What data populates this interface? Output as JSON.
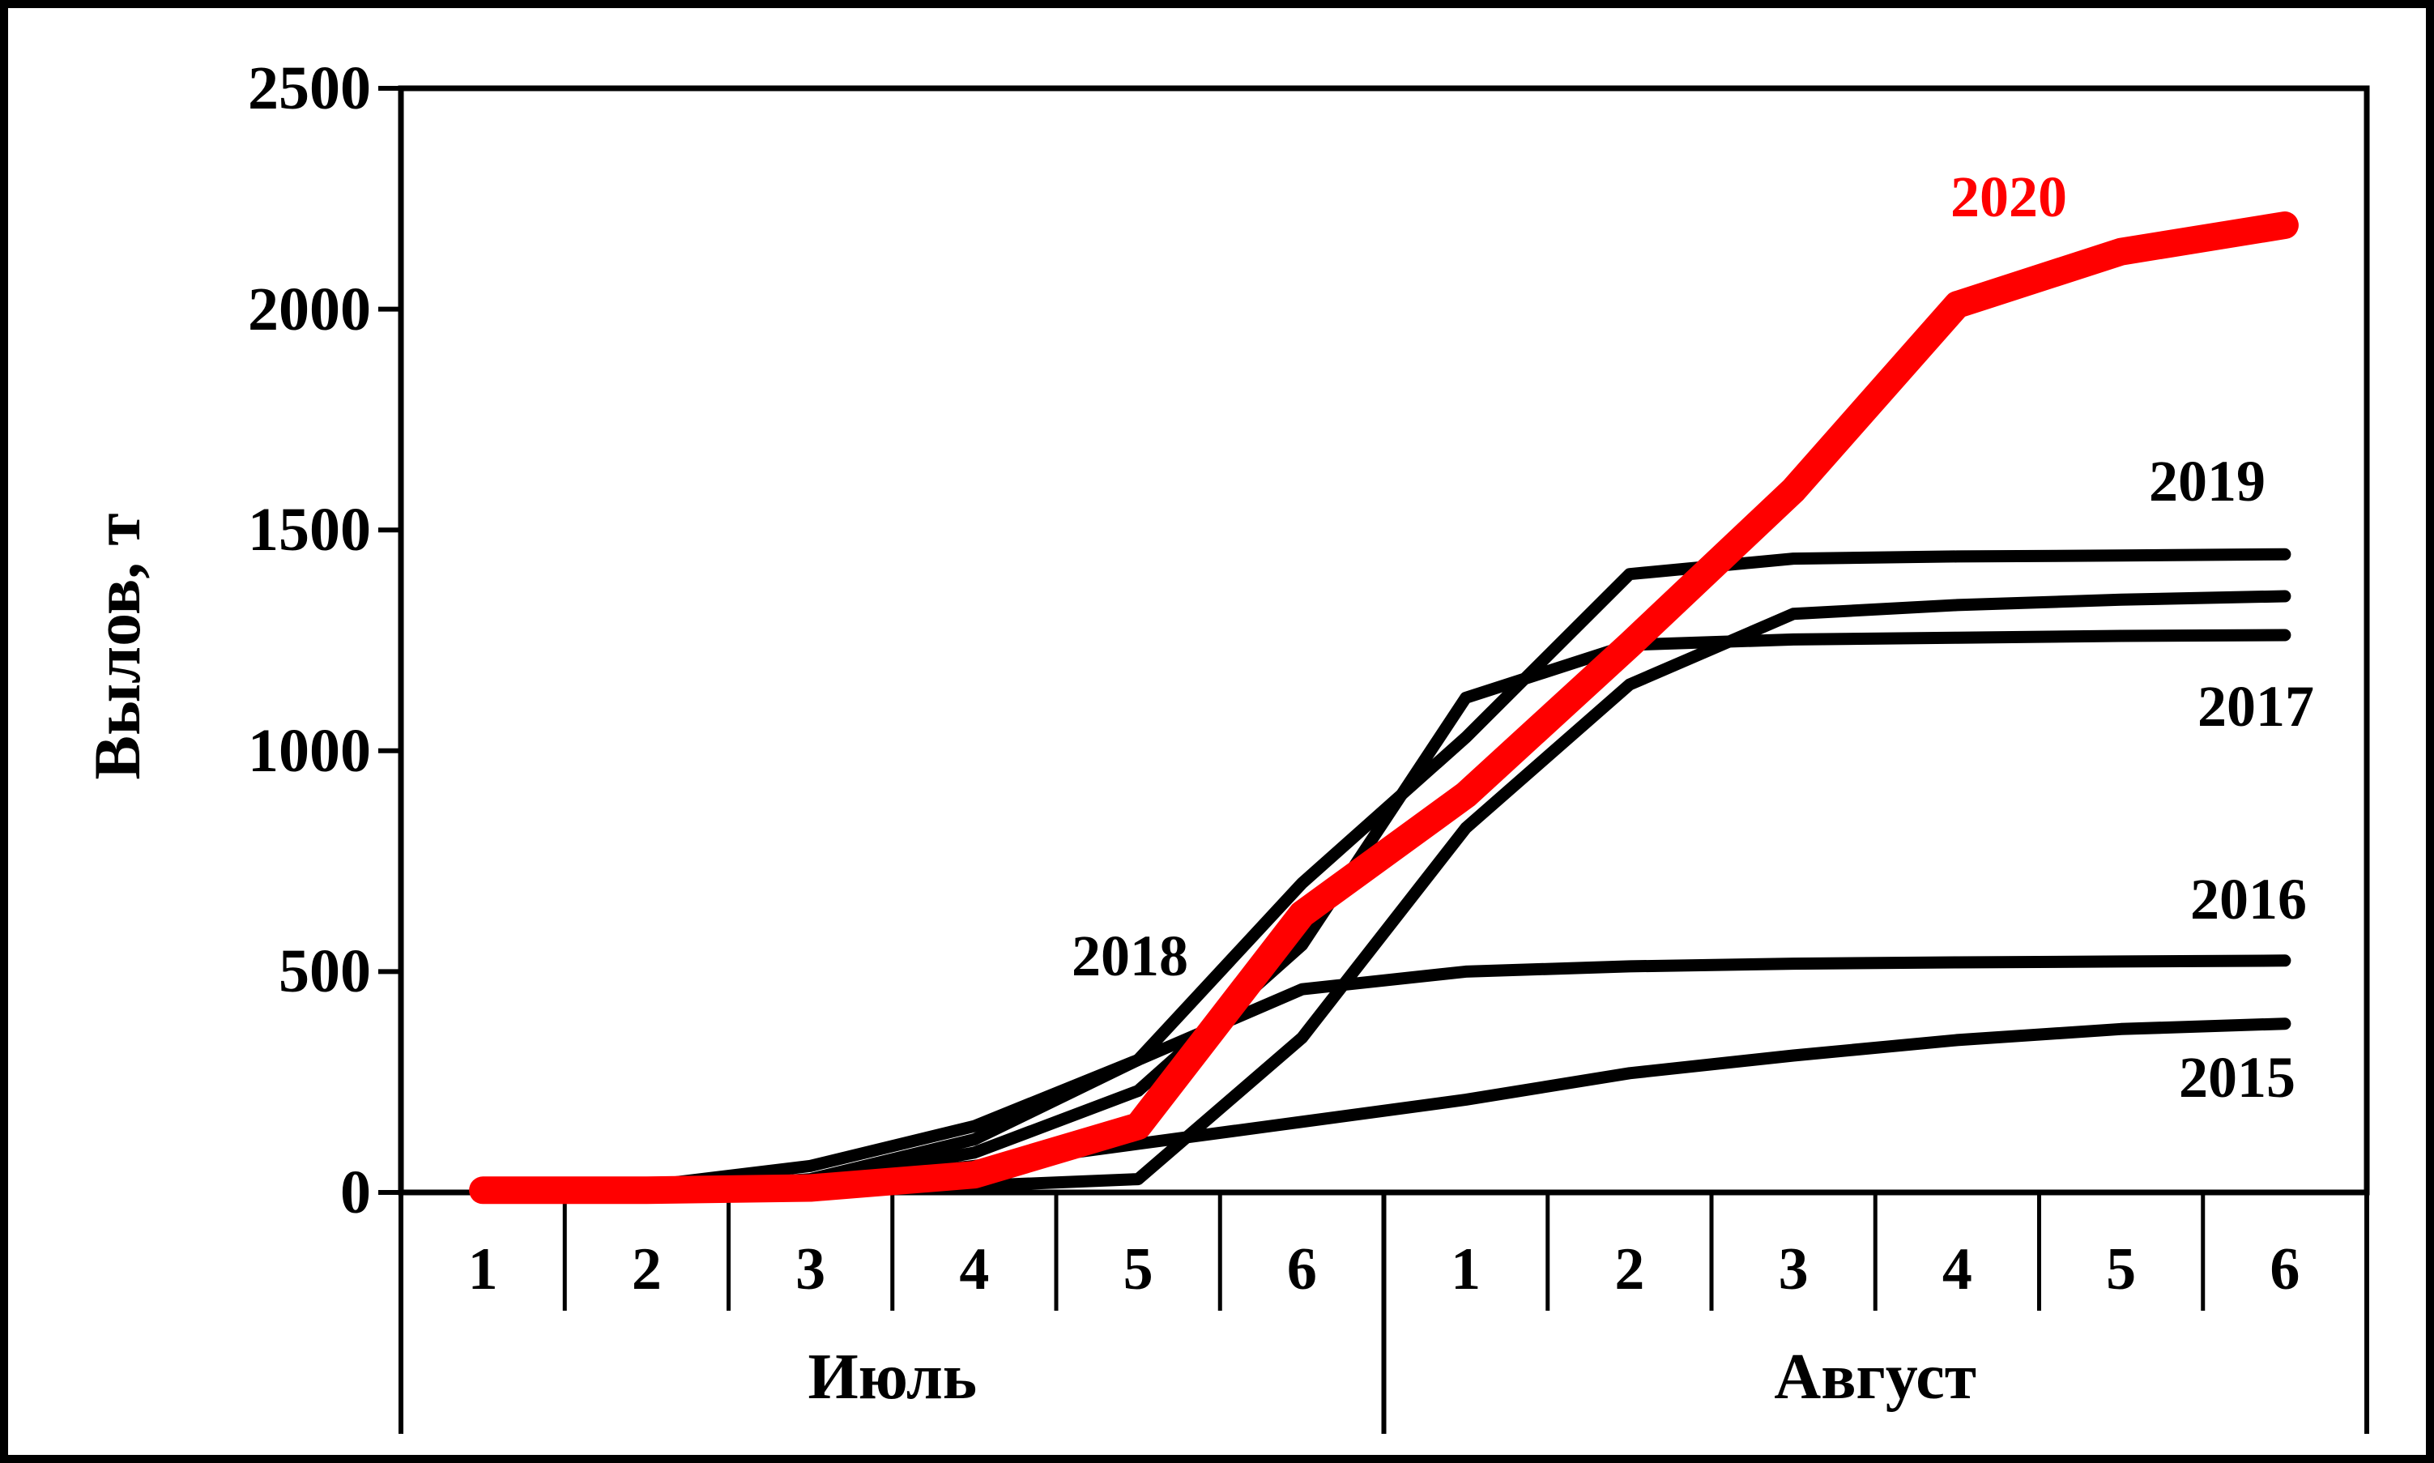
{
  "figure": {
    "background_color": "#ffffff",
    "frame_color": "#000000",
    "accent_color": "#ff0000"
  },
  "chart_data": {
    "type": "line",
    "title": "",
    "xlabel": "",
    "ylabel": "Вылов, т",
    "ylim": [
      0,
      2500
    ],
    "y_ticks": [
      "0",
      "500",
      "1000",
      "1500",
      "2000",
      "2500"
    ],
    "grid": "off",
    "legend_position": "inline-labels",
    "categories": [
      "1",
      "2",
      "3",
      "4",
      "5",
      "6",
      "1",
      "2",
      "3",
      "4",
      "5",
      "6"
    ],
    "month_groups": [
      {
        "label": "Июль",
        "from": 0,
        "to": 6
      },
      {
        "label": "Август",
        "from": 6,
        "to": 12
      }
    ],
    "series": [
      {
        "name": "2015",
        "color": "#000000",
        "stroke_width": 15,
        "values": [
          0,
          5,
          20,
          60,
          110,
          160,
          210,
          270,
          310,
          345,
          370,
          382
        ]
      },
      {
        "name": "2016",
        "color": "#000000",
        "stroke_width": 15,
        "values": [
          5,
          15,
          60,
          150,
          300,
          460,
          500,
          512,
          518,
          521,
          523,
          525
        ]
      },
      {
        "name": "2017",
        "color": "#000000",
        "stroke_width": 15,
        "values": [
          0,
          5,
          25,
          90,
          230,
          560,
          1120,
          1240,
          1252,
          1256,
          1260,
          1262
        ]
      },
      {
        "name": "2018",
        "color": "#000000",
        "stroke_width": 15,
        "values": [
          0,
          0,
          5,
          15,
          30,
          350,
          825,
          1150,
          1310,
          1330,
          1342,
          1350
        ]
      },
      {
        "name": "2019",
        "color": "#000000",
        "stroke_width": 15,
        "values": [
          0,
          5,
          30,
          120,
          300,
          700,
          1030,
          1400,
          1435,
          1440,
          1442,
          1445
        ]
      },
      {
        "name": "2020",
        "color": "#ff0000",
        "stroke_width": 34,
        "values": [
          5,
          5,
          10,
          40,
          150,
          630,
          900,
          1240,
          1590,
          2010,
          2130,
          2190
        ]
      }
    ]
  }
}
